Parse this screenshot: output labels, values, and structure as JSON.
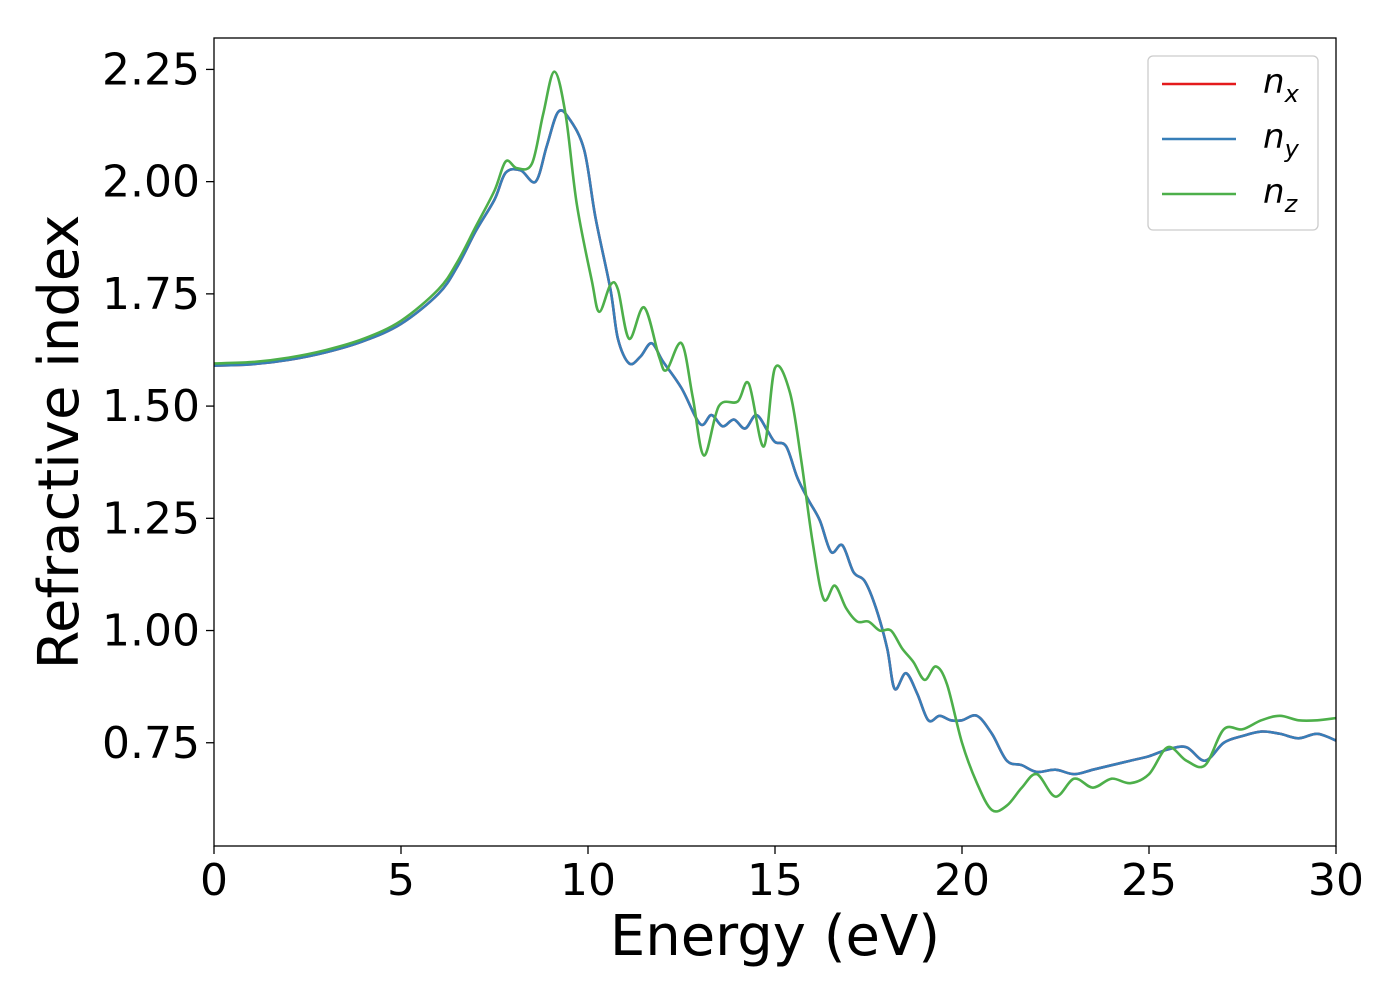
{
  "chart_data": {
    "type": "line",
    "title": "",
    "xlabel": "Energy (eV)",
    "ylabel": "Refractive index",
    "xlim": [
      0,
      30
    ],
    "ylim": [
      0.52,
      2.32
    ],
    "xticks": [
      0,
      5,
      10,
      15,
      20,
      25,
      30
    ],
    "xtick_labels": [
      "0",
      "5",
      "10",
      "15",
      "20",
      "25",
      "30"
    ],
    "yticks": [
      0.75,
      1.0,
      1.25,
      1.5,
      1.75,
      2.0,
      2.25
    ],
    "ytick_labels": [
      "0.75",
      "1.00",
      "1.25",
      "1.50",
      "1.75",
      "2.00",
      "2.25"
    ],
    "grid": false,
    "legend_position": "top-right",
    "series": [
      {
        "name": "n_x",
        "legend_base": "n",
        "legend_sub": "x",
        "color": "#e41a1c",
        "points": [
          [
            0,
            1.59
          ],
          [
            1,
            1.593
          ],
          [
            2,
            1.603
          ],
          [
            3,
            1.62
          ],
          [
            4,
            1.645
          ],
          [
            5,
            1.683
          ],
          [
            6,
            1.75
          ],
          [
            6.5,
            1.81
          ],
          [
            7,
            1.89
          ],
          [
            7.5,
            1.96
          ],
          [
            7.8,
            2.02
          ],
          [
            8.2,
            2.025
          ],
          [
            8.6,
            2.0
          ],
          [
            8.9,
            2.08
          ],
          [
            9.2,
            2.155
          ],
          [
            9.5,
            2.14
          ],
          [
            9.9,
            2.07
          ],
          [
            10.2,
            1.92
          ],
          [
            10.6,
            1.76
          ],
          [
            10.8,
            1.65
          ],
          [
            11.1,
            1.595
          ],
          [
            11.4,
            1.61
          ],
          [
            11.7,
            1.64
          ],
          [
            12.0,
            1.6
          ],
          [
            12.5,
            1.54
          ],
          [
            13.0,
            1.46
          ],
          [
            13.3,
            1.48
          ],
          [
            13.6,
            1.455
          ],
          [
            13.9,
            1.47
          ],
          [
            14.2,
            1.45
          ],
          [
            14.5,
            1.48
          ],
          [
            14.8,
            1.445
          ],
          [
            15.0,
            1.42
          ],
          [
            15.3,
            1.41
          ],
          [
            15.6,
            1.34
          ],
          [
            15.9,
            1.29
          ],
          [
            16.2,
            1.245
          ],
          [
            16.5,
            1.175
          ],
          [
            16.8,
            1.19
          ],
          [
            17.1,
            1.13
          ],
          [
            17.4,
            1.11
          ],
          [
            17.7,
            1.05
          ],
          [
            18.0,
            0.96
          ],
          [
            18.2,
            0.87
          ],
          [
            18.5,
            0.905
          ],
          [
            18.8,
            0.86
          ],
          [
            19.1,
            0.8
          ],
          [
            19.4,
            0.81
          ],
          [
            19.7,
            0.8
          ],
          [
            20.0,
            0.8
          ],
          [
            20.4,
            0.81
          ],
          [
            20.8,
            0.77
          ],
          [
            21.2,
            0.71
          ],
          [
            21.6,
            0.7
          ],
          [
            22.0,
            0.685
          ],
          [
            22.5,
            0.69
          ],
          [
            23.0,
            0.68
          ],
          [
            23.5,
            0.69
          ],
          [
            24.0,
            0.7
          ],
          [
            24.5,
            0.71
          ],
          [
            25.0,
            0.72
          ],
          [
            25.5,
            0.735
          ],
          [
            26.0,
            0.74
          ],
          [
            26.5,
            0.71
          ],
          [
            27.0,
            0.75
          ],
          [
            27.5,
            0.765
          ],
          [
            28.0,
            0.775
          ],
          [
            28.5,
            0.77
          ],
          [
            29.0,
            0.76
          ],
          [
            29.5,
            0.77
          ],
          [
            30.0,
            0.755
          ]
        ]
      },
      {
        "name": "n_y",
        "legend_base": "n",
        "legend_sub": "y",
        "color": "#377eb8",
        "points": [
          [
            0,
            1.59
          ],
          [
            1,
            1.593
          ],
          [
            2,
            1.603
          ],
          [
            3,
            1.62
          ],
          [
            4,
            1.645
          ],
          [
            5,
            1.683
          ],
          [
            6,
            1.75
          ],
          [
            6.5,
            1.81
          ],
          [
            7,
            1.89
          ],
          [
            7.5,
            1.96
          ],
          [
            7.8,
            2.02
          ],
          [
            8.2,
            2.025
          ],
          [
            8.6,
            2.0
          ],
          [
            8.9,
            2.08
          ],
          [
            9.2,
            2.155
          ],
          [
            9.5,
            2.14
          ],
          [
            9.9,
            2.07
          ],
          [
            10.2,
            1.92
          ],
          [
            10.6,
            1.76
          ],
          [
            10.8,
            1.65
          ],
          [
            11.1,
            1.595
          ],
          [
            11.4,
            1.61
          ],
          [
            11.7,
            1.64
          ],
          [
            12.0,
            1.6
          ],
          [
            12.5,
            1.54
          ],
          [
            13.0,
            1.46
          ],
          [
            13.3,
            1.48
          ],
          [
            13.6,
            1.455
          ],
          [
            13.9,
            1.47
          ],
          [
            14.2,
            1.45
          ],
          [
            14.5,
            1.48
          ],
          [
            14.8,
            1.445
          ],
          [
            15.0,
            1.42
          ],
          [
            15.3,
            1.41
          ],
          [
            15.6,
            1.34
          ],
          [
            15.9,
            1.29
          ],
          [
            16.2,
            1.245
          ],
          [
            16.5,
            1.175
          ],
          [
            16.8,
            1.19
          ],
          [
            17.1,
            1.13
          ],
          [
            17.4,
            1.11
          ],
          [
            17.7,
            1.05
          ],
          [
            18.0,
            0.96
          ],
          [
            18.2,
            0.87
          ],
          [
            18.5,
            0.905
          ],
          [
            18.8,
            0.86
          ],
          [
            19.1,
            0.8
          ],
          [
            19.4,
            0.81
          ],
          [
            19.7,
            0.8
          ],
          [
            20.0,
            0.8
          ],
          [
            20.4,
            0.81
          ],
          [
            20.8,
            0.77
          ],
          [
            21.2,
            0.71
          ],
          [
            21.6,
            0.7
          ],
          [
            22.0,
            0.685
          ],
          [
            22.5,
            0.69
          ],
          [
            23.0,
            0.68
          ],
          [
            23.5,
            0.69
          ],
          [
            24.0,
            0.7
          ],
          [
            24.5,
            0.71
          ],
          [
            25.0,
            0.72
          ],
          [
            25.5,
            0.735
          ],
          [
            26.0,
            0.74
          ],
          [
            26.5,
            0.71
          ],
          [
            27.0,
            0.75
          ],
          [
            27.5,
            0.765
          ],
          [
            28.0,
            0.775
          ],
          [
            28.5,
            0.77
          ],
          [
            29.0,
            0.76
          ],
          [
            29.5,
            0.77
          ],
          [
            30.0,
            0.755
          ]
        ]
      },
      {
        "name": "n_z",
        "legend_base": "n",
        "legend_sub": "z",
        "color": "#4daf4a",
        "points": [
          [
            0,
            1.595
          ],
          [
            1,
            1.598
          ],
          [
            2,
            1.608
          ],
          [
            3,
            1.625
          ],
          [
            4,
            1.65
          ],
          [
            5,
            1.69
          ],
          [
            6,
            1.76
          ],
          [
            6.5,
            1.82
          ],
          [
            7,
            1.9
          ],
          [
            7.5,
            1.98
          ],
          [
            7.8,
            2.045
          ],
          [
            8.1,
            2.03
          ],
          [
            8.5,
            2.04
          ],
          [
            8.8,
            2.15
          ],
          [
            9.1,
            2.245
          ],
          [
            9.4,
            2.15
          ],
          [
            9.7,
            1.95
          ],
          [
            10.1,
            1.78
          ],
          [
            10.3,
            1.71
          ],
          [
            10.6,
            1.77
          ],
          [
            10.8,
            1.76
          ],
          [
            11.1,
            1.65
          ],
          [
            11.5,
            1.72
          ],
          [
            11.9,
            1.61
          ],
          [
            12.1,
            1.58
          ],
          [
            12.5,
            1.64
          ],
          [
            12.8,
            1.52
          ],
          [
            13.1,
            1.39
          ],
          [
            13.5,
            1.5
          ],
          [
            14.0,
            1.51
          ],
          [
            14.3,
            1.55
          ],
          [
            14.7,
            1.41
          ],
          [
            15.0,
            1.585
          ],
          [
            15.4,
            1.53
          ],
          [
            15.7,
            1.38
          ],
          [
            16.0,
            1.2
          ],
          [
            16.3,
            1.07
          ],
          [
            16.6,
            1.1
          ],
          [
            16.9,
            1.05
          ],
          [
            17.2,
            1.02
          ],
          [
            17.5,
            1.02
          ],
          [
            17.8,
            1.0
          ],
          [
            18.1,
            1.0
          ],
          [
            18.4,
            0.96
          ],
          [
            18.7,
            0.93
          ],
          [
            19.0,
            0.89
          ],
          [
            19.3,
            0.92
          ],
          [
            19.6,
            0.88
          ],
          [
            20.0,
            0.75
          ],
          [
            20.4,
            0.66
          ],
          [
            20.8,
            0.6
          ],
          [
            21.2,
            0.61
          ],
          [
            21.6,
            0.65
          ],
          [
            22.0,
            0.68
          ],
          [
            22.5,
            0.63
          ],
          [
            23.0,
            0.67
          ],
          [
            23.5,
            0.65
          ],
          [
            24.0,
            0.67
          ],
          [
            24.5,
            0.66
          ],
          [
            25.0,
            0.68
          ],
          [
            25.5,
            0.74
          ],
          [
            26.0,
            0.71
          ],
          [
            26.5,
            0.7
          ],
          [
            27.0,
            0.78
          ],
          [
            27.5,
            0.78
          ],
          [
            28.0,
            0.8
          ],
          [
            28.5,
            0.81
          ],
          [
            29.0,
            0.8
          ],
          [
            29.5,
            0.8
          ],
          [
            30.0,
            0.805
          ]
        ]
      }
    ]
  }
}
